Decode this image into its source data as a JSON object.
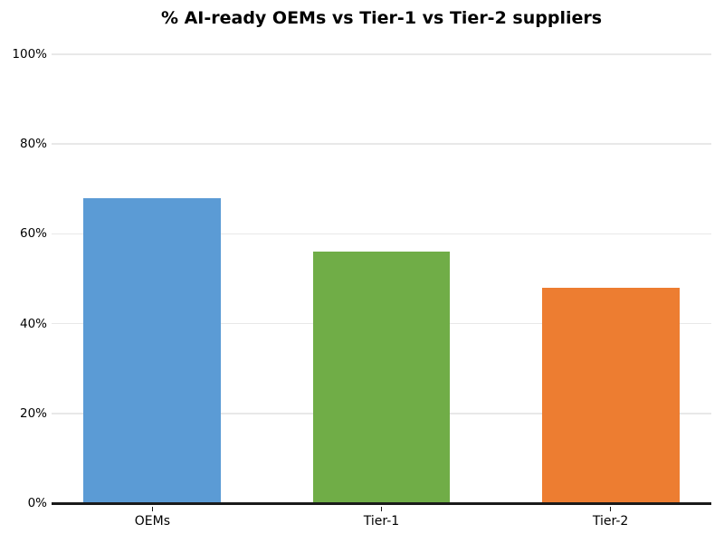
{
  "chart_data": {
    "type": "bar",
    "title": "% AI-ready OEMs vs Tier-1 vs Tier-2 suppliers",
    "categories": [
      "OEMs",
      "Tier-1",
      "Tier-2"
    ],
    "values": [
      68,
      56,
      48
    ],
    "bar_colors": [
      "#5b9bd5",
      "#70ad47",
      "#ed7d31"
    ],
    "xlabel": "",
    "ylabel": "",
    "ylim": [
      0,
      100
    ],
    "yticks": [
      0,
      20,
      40,
      60,
      80,
      100
    ],
    "ytick_labels": [
      "0%",
      "20%",
      "40%",
      "60%",
      "80%",
      "100%"
    ],
    "grid": "horizontal",
    "legend": "none",
    "layout": {
      "xlim": [
        -0.44,
        2.44
      ],
      "bar_width": 0.6
    },
    "colors": {
      "gridline": "#e8e8e8",
      "axis_line": "#1a1a1a",
      "tick_mark": "#1a1a1a",
      "text": "#000000",
      "background": "#ffffff"
    }
  }
}
